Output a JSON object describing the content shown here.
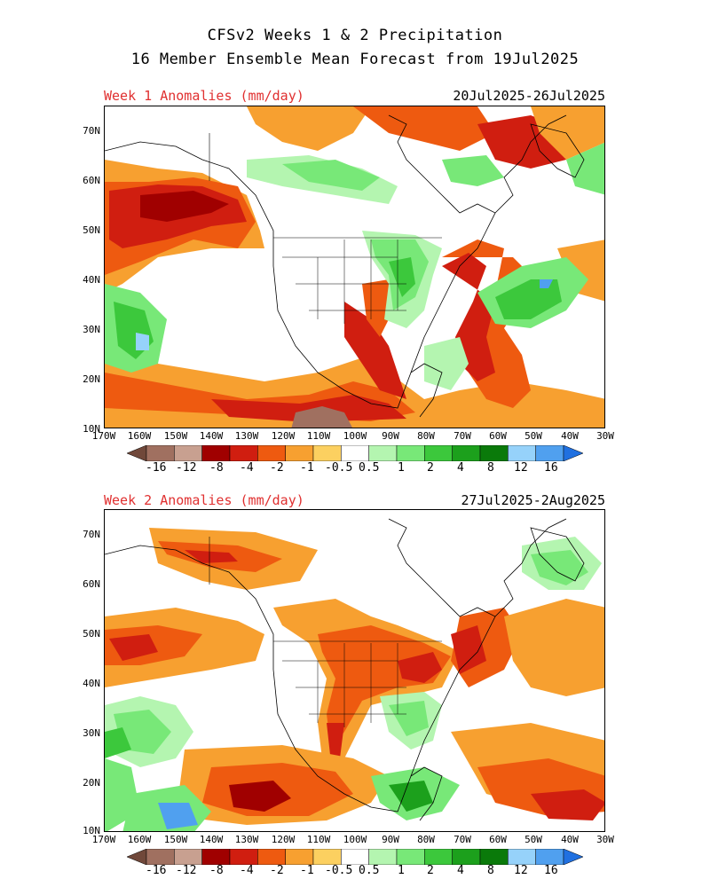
{
  "header": {
    "title_line1": "CFSv2 Weeks 1 & 2 Precipitation",
    "title_line2": "16 Member Ensemble Mean Forecast from 19Jul2025"
  },
  "panels": [
    {
      "label": "Week 1 Anomalies (mm/day)",
      "dates": "20Jul2025-26Jul2025",
      "lat_labels": [
        "70N",
        "60N",
        "50N",
        "40N",
        "30N",
        "20N",
        "10N"
      ],
      "lon_labels": [
        "170W",
        "160W",
        "150W",
        "140W",
        "130W",
        "120W",
        "110W",
        "100W",
        "90W",
        "80W",
        "70W",
        "60W",
        "50W",
        "40W",
        "30W"
      ]
    },
    {
      "label": "Week 2 Anomalies (mm/day)",
      "dates": "27Jul2025-2Aug2025",
      "lat_labels": [
        "70N",
        "60N",
        "50N",
        "40N",
        "30N",
        "20N",
        "10N"
      ],
      "lon_labels": [
        "170W",
        "160W",
        "150W",
        "140W",
        "130W",
        "120W",
        "110W",
        "100W",
        "90W",
        "80W",
        "70W",
        "60W",
        "50W",
        "40W",
        "30W"
      ]
    }
  ],
  "colorbar": {
    "ticks": [
      "-16",
      "-12",
      "-8",
      "-4",
      "-2",
      "-1",
      "-0.5",
      "0.5",
      "1",
      "2",
      "4",
      "8",
      "12",
      "16"
    ],
    "colors": [
      "#70483a",
      "#a07060",
      "#c8a090",
      "#a00000",
      "#d01e10",
      "#ee5a10",
      "#f7a030",
      "#fcd060",
      "#ffffff",
      "#b4f5b0",
      "#78e878",
      "#3cc83c",
      "#1ca01c",
      "#0a7a0a",
      "#96d2fa",
      "#50a0ef",
      "#2070e0"
    ]
  }
}
